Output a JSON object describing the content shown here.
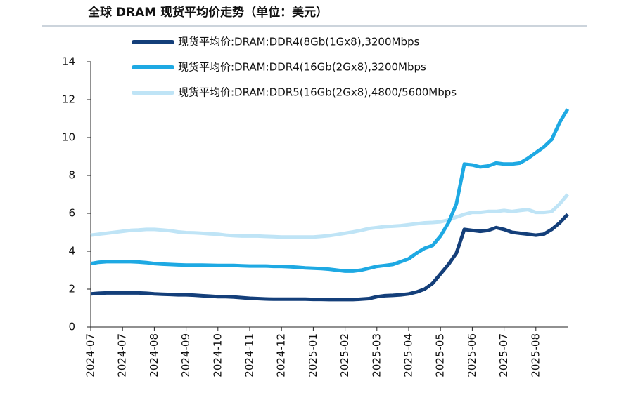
{
  "chart_data": {
    "type": "line",
    "title": "全球 DRAM 现货平均价走势（单位：美元）",
    "categories": [
      "2024-07",
      null,
      null,
      null,
      "2024-07",
      null,
      null,
      null,
      "2024-08",
      null,
      null,
      null,
      "2024-09",
      null,
      null,
      null,
      "2024-10",
      null,
      null,
      null,
      "2024-11",
      null,
      null,
      null,
      "2024-12",
      null,
      null,
      null,
      "2025-01",
      null,
      null,
      null,
      "2025-02",
      null,
      null,
      null,
      "2025-03",
      null,
      null,
      null,
      "2025-04",
      null,
      null,
      null,
      "2025-05",
      null,
      null,
      null,
      "2025-06",
      null,
      null,
      null,
      "2025-07",
      null,
      null,
      null,
      "2025-08",
      null,
      null,
      null,
      null
    ],
    "series": [
      {
        "name": "现货平均价:DRAM:DDR4(8Gb(1Gx8),3200Mbps",
        "color": "#143f7a",
        "values": [
          1.75,
          1.78,
          1.8,
          1.8,
          1.8,
          1.8,
          1.8,
          1.78,
          1.75,
          1.73,
          1.72,
          1.7,
          1.7,
          1.68,
          1.65,
          1.63,
          1.6,
          1.6,
          1.58,
          1.55,
          1.52,
          1.5,
          1.48,
          1.47,
          1.47,
          1.47,
          1.47,
          1.47,
          1.46,
          1.46,
          1.45,
          1.45,
          1.45,
          1.45,
          1.47,
          1.5,
          1.6,
          1.65,
          1.67,
          1.7,
          1.75,
          1.85,
          2.0,
          2.3,
          2.8,
          3.3,
          3.9,
          5.15,
          5.1,
          5.05,
          5.1,
          5.25,
          5.15,
          5.0,
          4.95,
          4.9,
          4.85,
          4.9,
          5.15,
          5.5,
          5.95
        ]
      },
      {
        "name": "现货平均价:DRAM:DDR4(16Gb(2Gx8),3200Mbps",
        "color": "#1ea9e3",
        "values": [
          3.35,
          3.42,
          3.45,
          3.45,
          3.45,
          3.45,
          3.43,
          3.4,
          3.35,
          3.32,
          3.3,
          3.28,
          3.27,
          3.27,
          3.27,
          3.26,
          3.25,
          3.25,
          3.25,
          3.23,
          3.22,
          3.22,
          3.22,
          3.2,
          3.2,
          3.18,
          3.15,
          3.12,
          3.1,
          3.08,
          3.05,
          3.0,
          2.95,
          2.95,
          3.0,
          3.1,
          3.2,
          3.25,
          3.3,
          3.45,
          3.6,
          3.9,
          4.15,
          4.3,
          4.8,
          5.5,
          6.5,
          8.6,
          8.55,
          8.45,
          8.5,
          8.65,
          8.6,
          8.6,
          8.65,
          8.9,
          9.2,
          9.5,
          9.9,
          10.8,
          11.5
        ]
      },
      {
        "name": "现货平均价:DRAM:DDR5(16Gb(2Gx8),4800/5600Mbps",
        "color": "#bfe4f6",
        "values": [
          4.85,
          4.9,
          4.95,
          5.0,
          5.05,
          5.1,
          5.12,
          5.15,
          5.15,
          5.12,
          5.08,
          5.02,
          4.98,
          4.97,
          4.95,
          4.92,
          4.9,
          4.85,
          4.82,
          4.8,
          4.8,
          4.8,
          4.78,
          4.77,
          4.75,
          4.75,
          4.75,
          4.75,
          4.75,
          4.78,
          4.82,
          4.88,
          4.95,
          5.02,
          5.1,
          5.2,
          5.25,
          5.3,
          5.32,
          5.35,
          5.4,
          5.45,
          5.5,
          5.52,
          5.55,
          5.65,
          5.8,
          5.95,
          6.05,
          6.05,
          6.1,
          6.1,
          6.15,
          6.1,
          6.15,
          6.2,
          6.05,
          6.05,
          6.1,
          6.5,
          7.0
        ]
      }
    ],
    "ylim": [
      0,
      14
    ],
    "yticks": [
      0,
      2,
      4,
      6,
      8,
      10,
      12,
      14
    ],
    "grid": false
  }
}
